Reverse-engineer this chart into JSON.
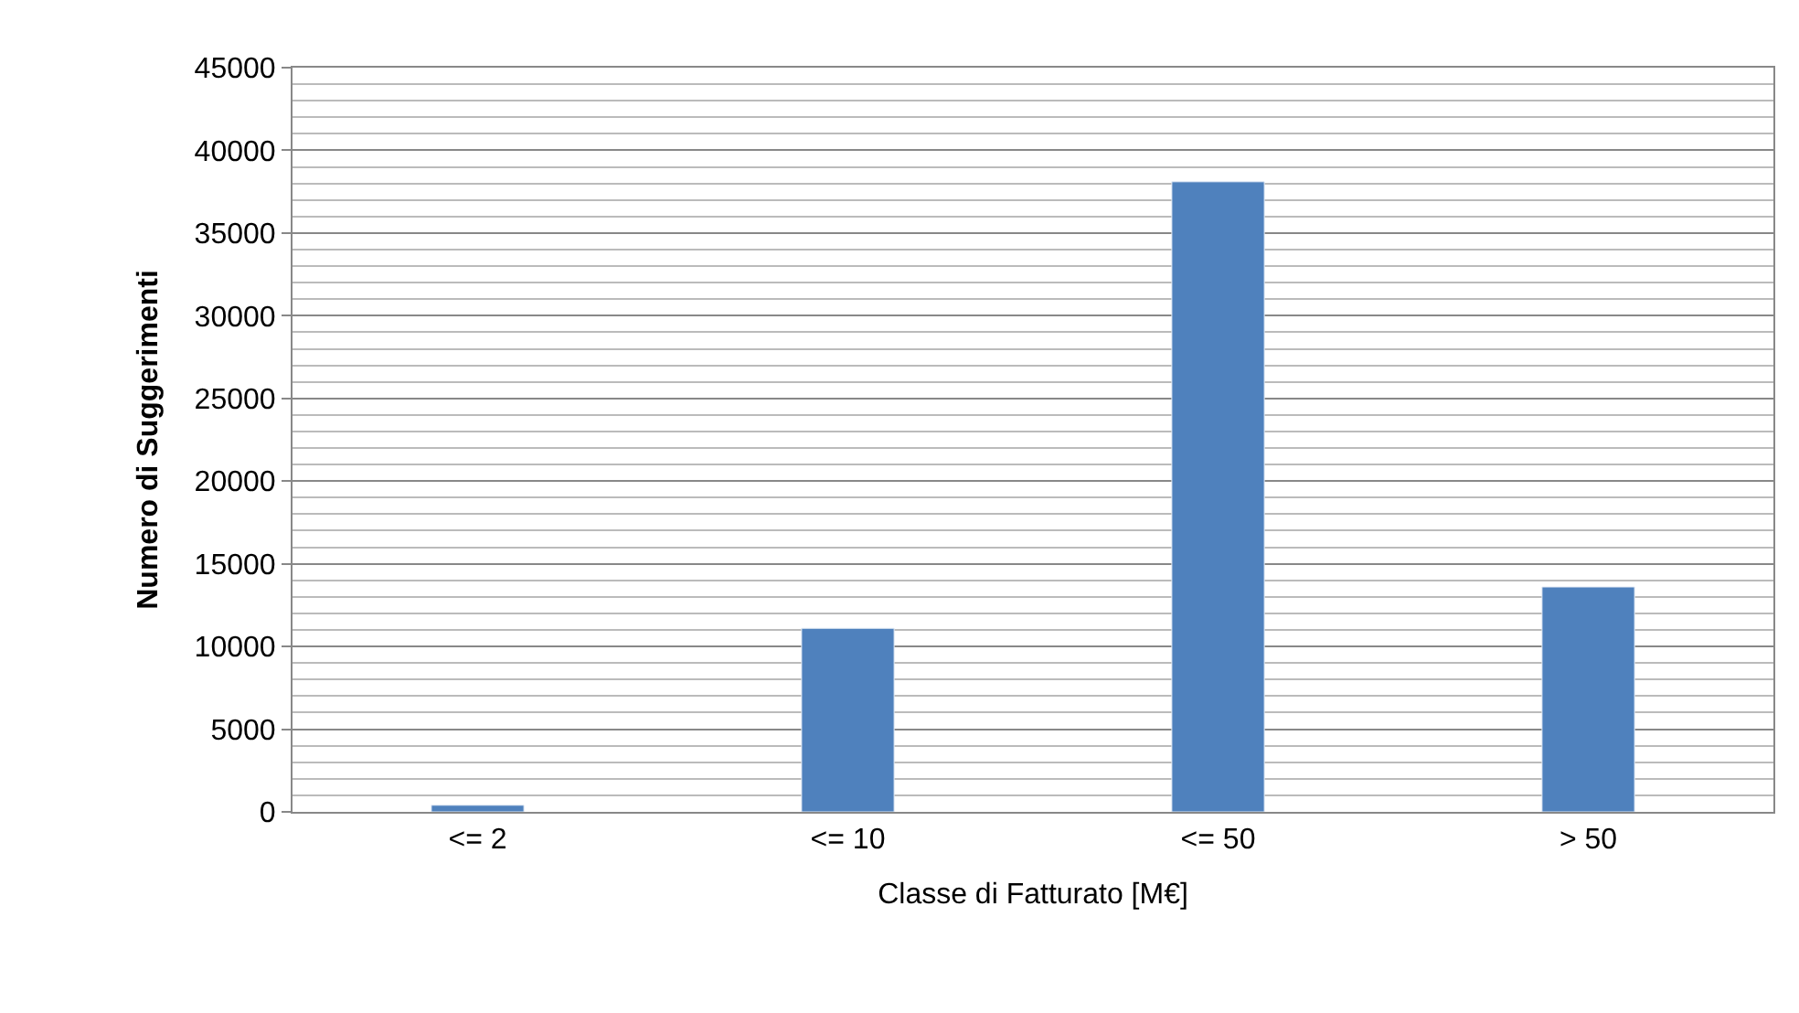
{
  "chart_data": {
    "type": "bar",
    "xlabel": "Classe di Fatturato [M€]",
    "ylabel": "Numero di Suggerimenti",
    "categories": [
      "<= 2",
      "<= 10",
      "<= 50",
      "> 50"
    ],
    "values": [
      400,
      11100,
      38100,
      13600
    ],
    "color": "#4f81bd",
    "ylim": [
      0,
      45000
    ],
    "yticks": [
      0,
      5000,
      10000,
      15000,
      20000,
      25000,
      30000,
      35000,
      40000,
      45000
    ],
    "grid": "y"
  }
}
